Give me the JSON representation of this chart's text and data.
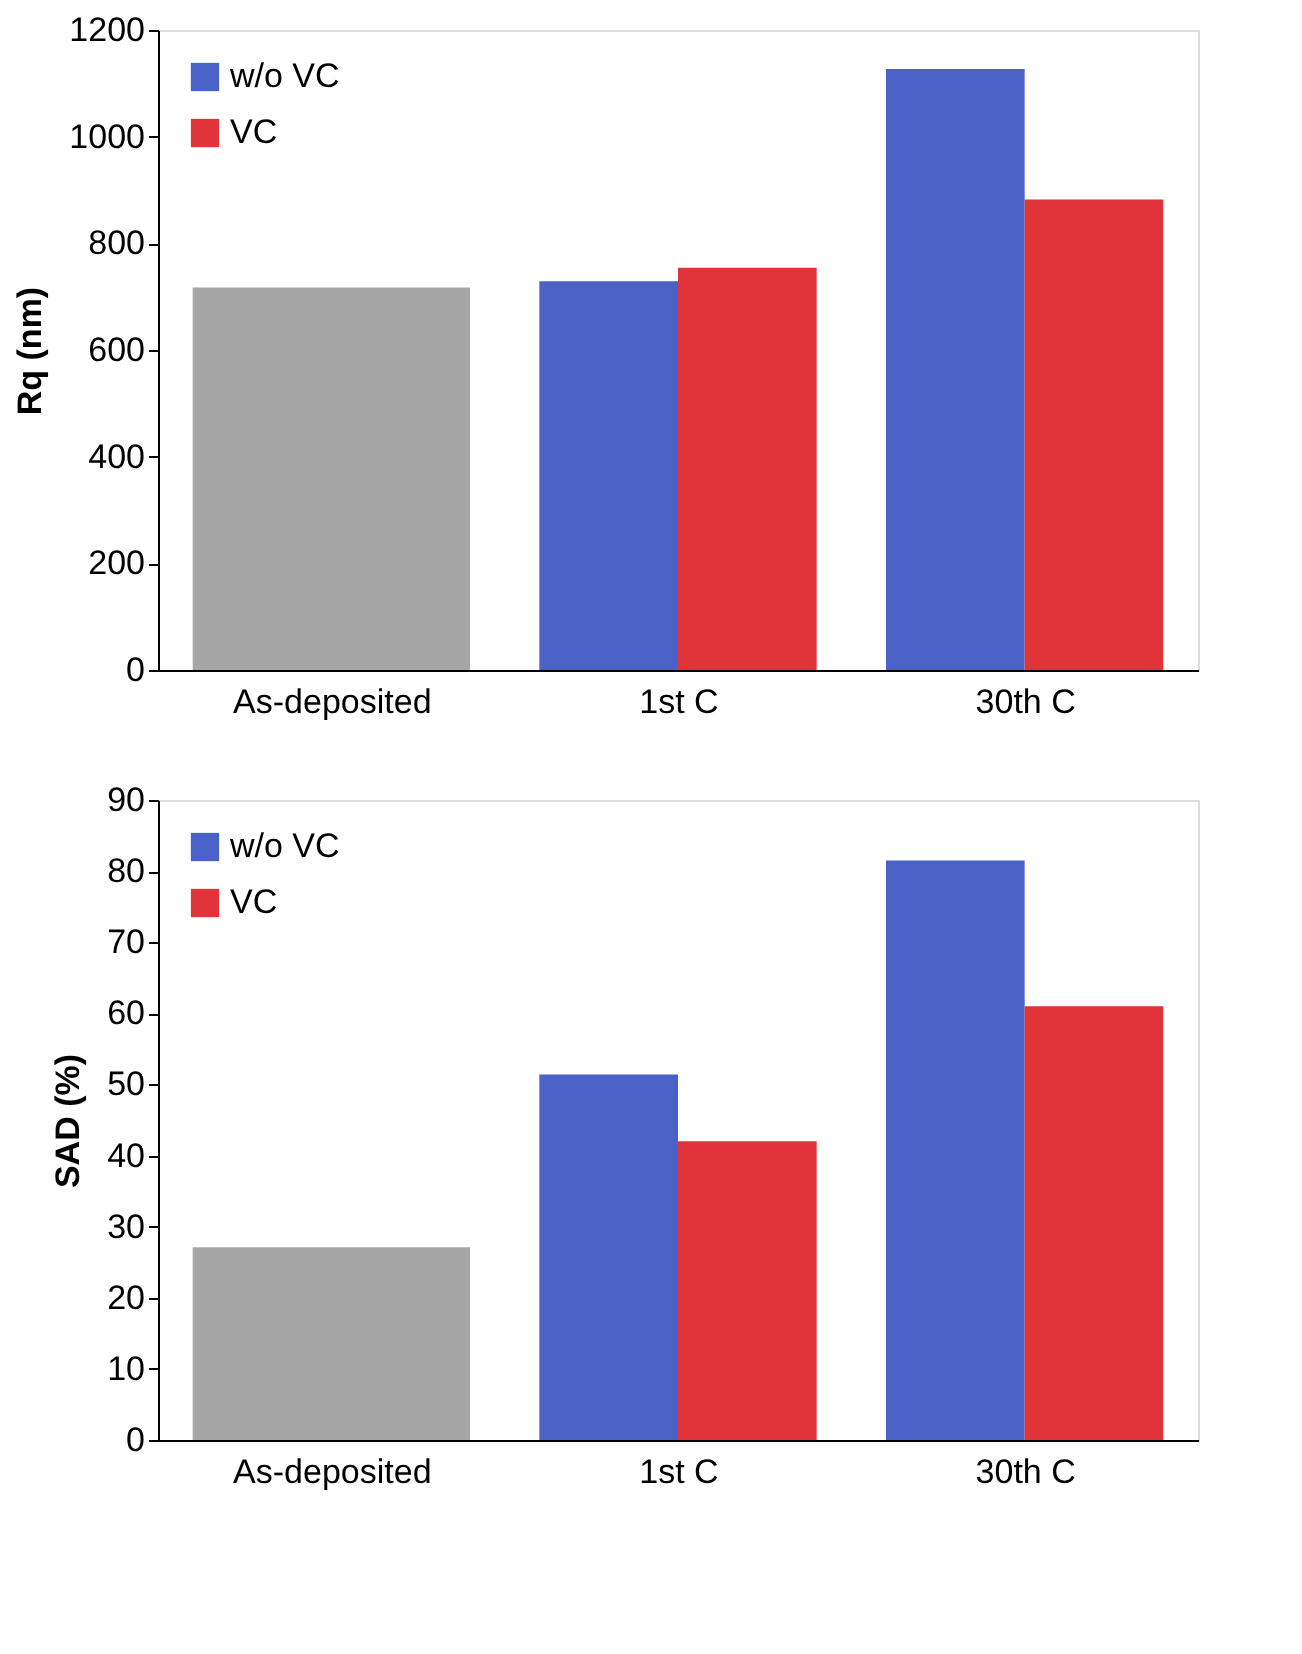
{
  "chart_data": [
    {
      "type": "bar",
      "ylabel": "Rq (nm)",
      "categories": [
        "As-deposited",
        "1st C",
        "30th C"
      ],
      "series": [
        {
          "color": "#a6a6a6",
          "values": [
            717,
            null,
            null
          ]
        },
        {
          "name": "w/o VC",
          "color": "#4a62c8",
          "values": [
            null,
            729,
            1127
          ]
        },
        {
          "name": "VC",
          "color": "#e0343a",
          "values": [
            null,
            754,
            882
          ]
        }
      ],
      "ylim": [
        0,
        1200
      ],
      "yticks": [
        0,
        200,
        400,
        600,
        800,
        1000,
        1200
      ],
      "grid": false,
      "legend": "top left"
    },
    {
      "type": "bar",
      "ylabel": "SAD (%)",
      "categories": [
        "As-deposited",
        "1st C",
        "30th C"
      ],
      "series": [
        {
          "color": "#a6a6a6",
          "values": [
            27.1,
            null,
            null
          ]
        },
        {
          "name": "w/o VC",
          "color": "#4a62c8",
          "values": [
            null,
            51.4,
            81.5
          ]
        },
        {
          "name": "VC",
          "color": "#e0343a",
          "values": [
            null,
            42.0,
            61.0
          ]
        }
      ],
      "ylim": [
        0,
        90
      ],
      "yticks": [
        0,
        10,
        20,
        30,
        40,
        50,
        60,
        70,
        80,
        90
      ],
      "grid": false,
      "legend": "top left"
    }
  ]
}
